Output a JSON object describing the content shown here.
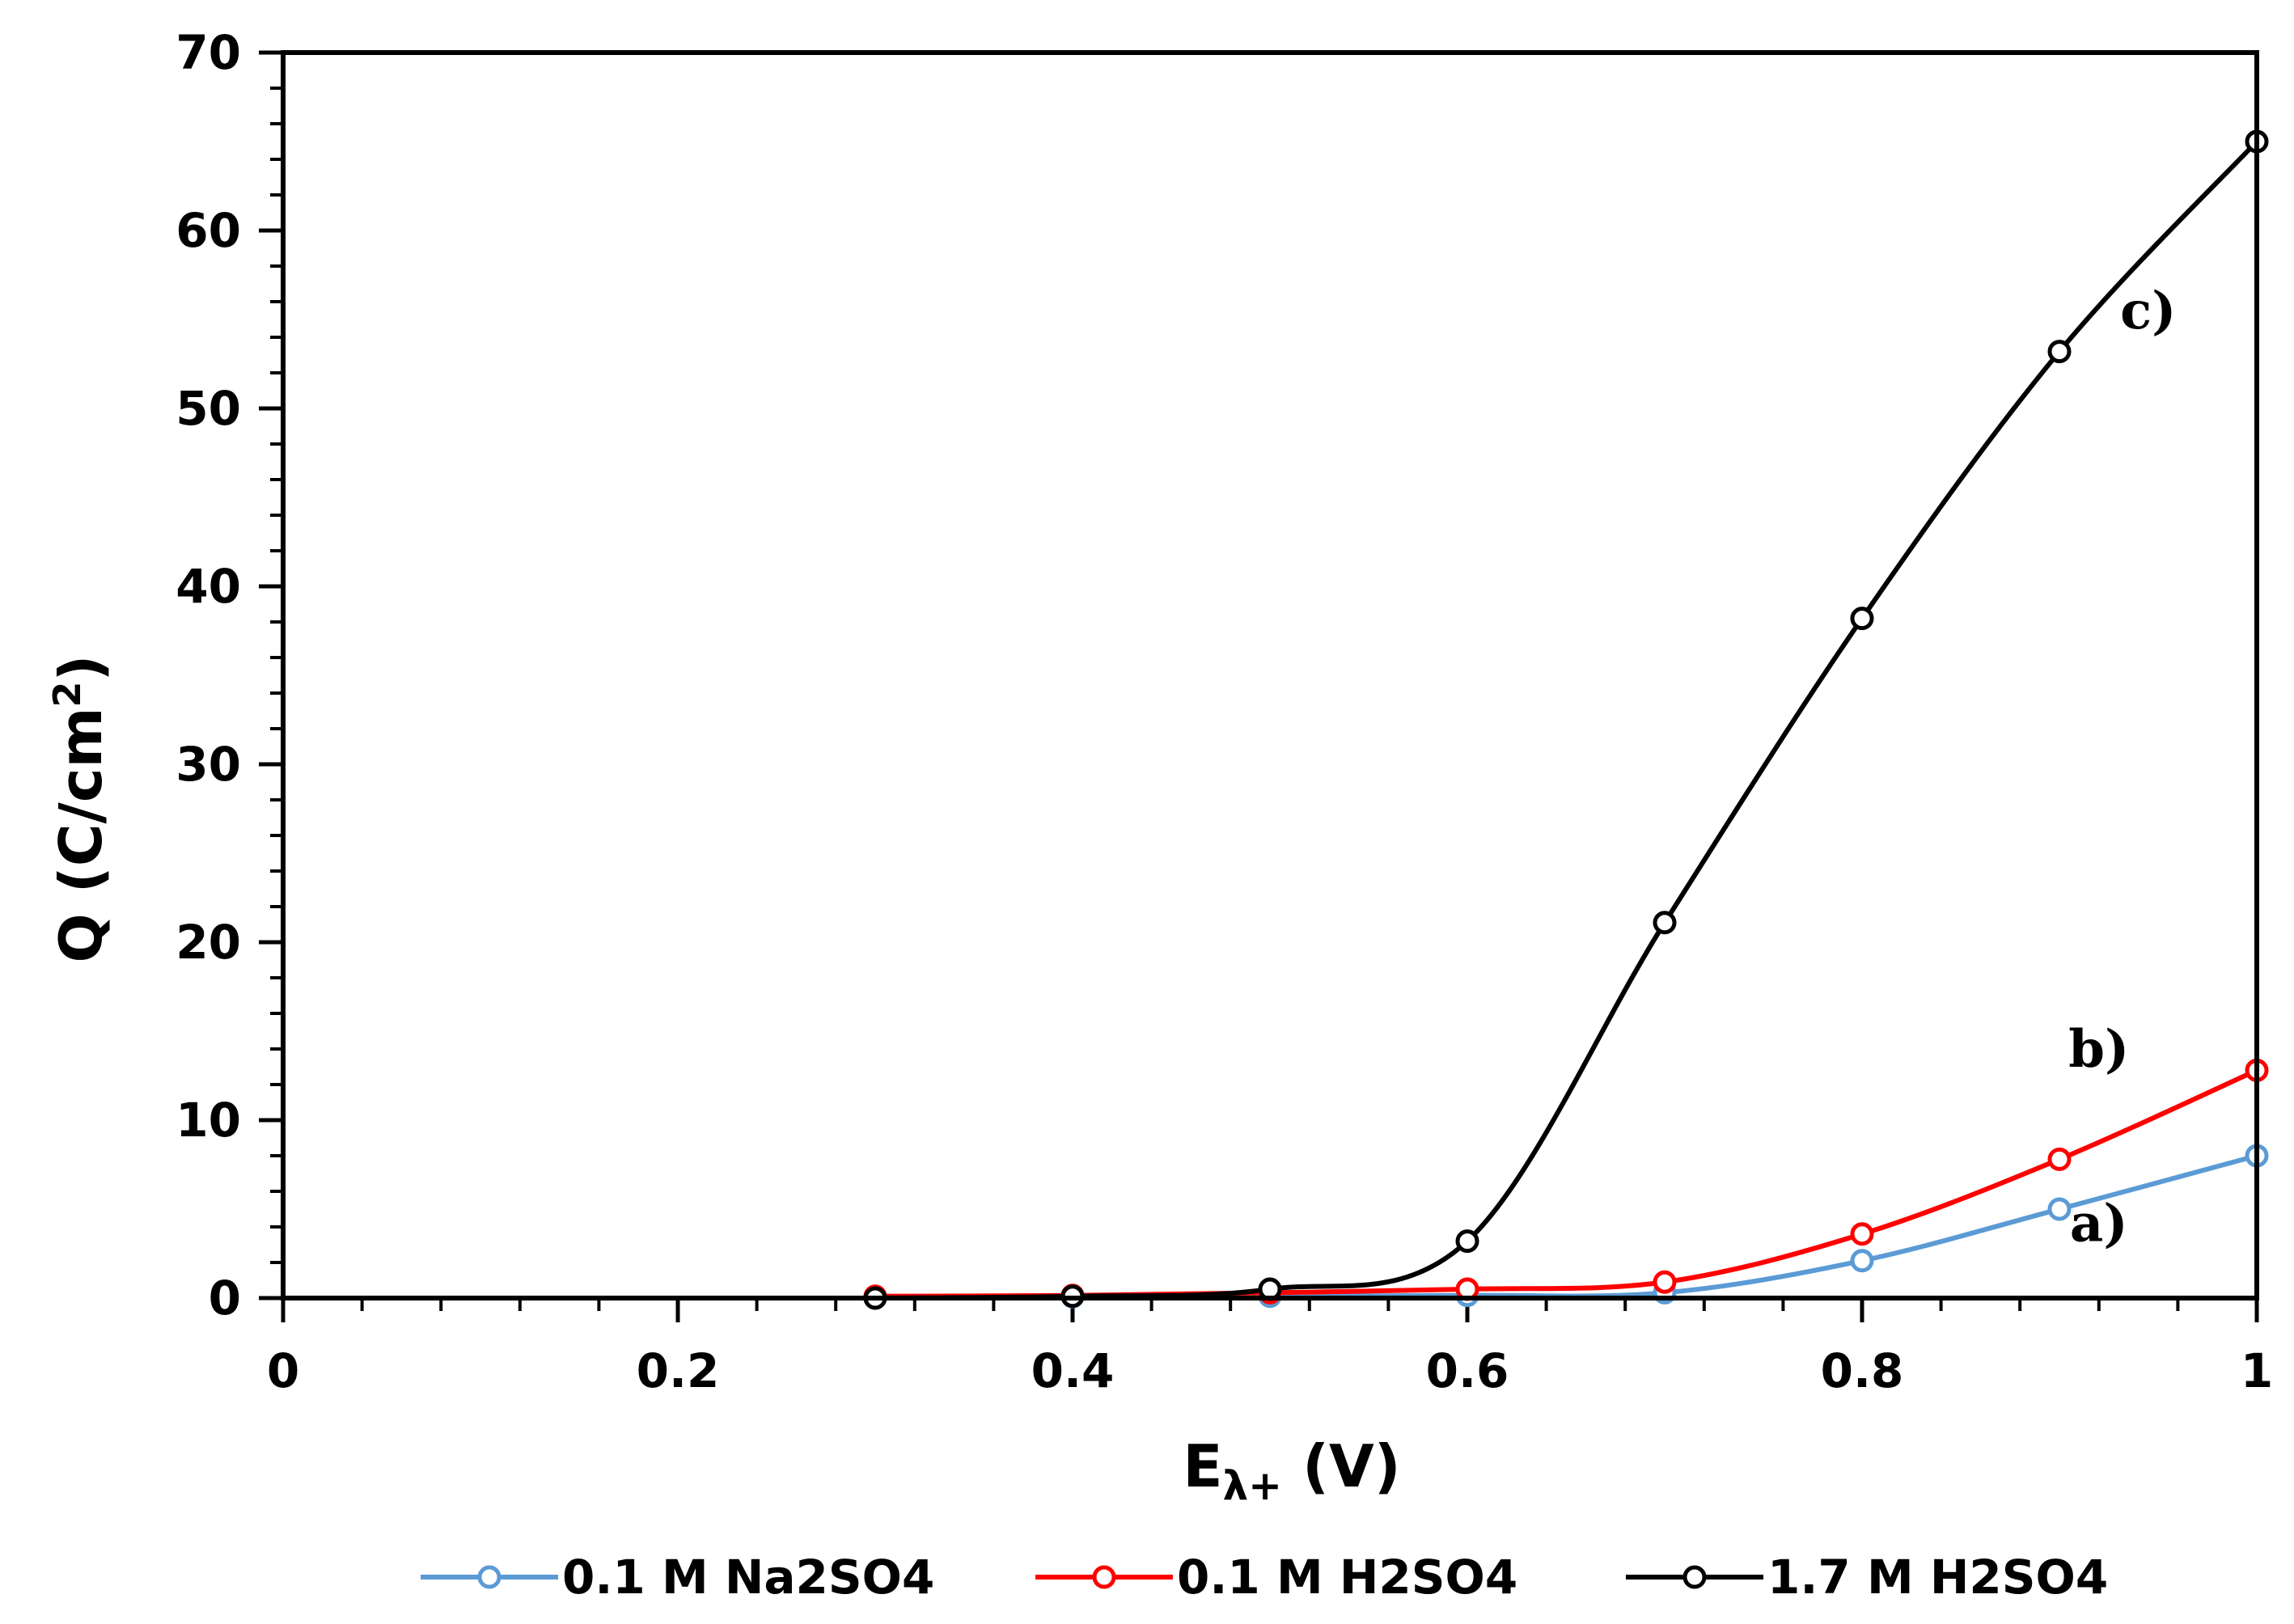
{
  "chart_data": {
    "type": "line",
    "title": "",
    "xlabel_main": "E",
    "xlabel_sub": "λ+",
    "xlabel_suffix": " (V)",
    "ylabel_main": "Q (C/cm",
    "ylabel_sup": "2",
    "ylabel_suffix": ")",
    "xlim": [
      0,
      1
    ],
    "ylim": [
      0,
      70
    ],
    "xticks": [
      0,
      0.2,
      0.4,
      0.6,
      0.8,
      1
    ],
    "xtick_labels": [
      "0",
      "0.2",
      "0.4",
      "0.6",
      "0.8",
      "1"
    ],
    "yticks": [
      0,
      10,
      20,
      30,
      40,
      50,
      60,
      70
    ],
    "ytick_labels": [
      "0",
      "10",
      "20",
      "30",
      "40",
      "50",
      "60",
      "70"
    ],
    "x_minor_step": 0.04,
    "y_minor_step": 2,
    "grid": false,
    "legend_position": "bottom",
    "series": [
      {
        "name": "0.1 M Na2SO4",
        "color": "#5b9bd5",
        "x": [
          0.3,
          0.4,
          0.5,
          0.6,
          0.7,
          0.8,
          0.9,
          1.0
        ],
        "values": [
          0.05,
          0.08,
          0.1,
          0.15,
          0.3,
          2.1,
          5.0,
          8.0
        ]
      },
      {
        "name": "0.1 M H2SO4",
        "color": "#ff0000",
        "x": [
          0.3,
          0.4,
          0.5,
          0.6,
          0.7,
          0.8,
          0.9,
          1.0
        ],
        "values": [
          0.1,
          0.15,
          0.3,
          0.5,
          0.9,
          3.6,
          7.8,
          12.8
        ]
      },
      {
        "name": "1.7 M H2SO4",
        "color": "#000000",
        "x": [
          0.3,
          0.4,
          0.5,
          0.6,
          0.7,
          0.8,
          0.9,
          1.0
        ],
        "values": [
          0.0,
          0.1,
          0.5,
          3.2,
          21.1,
          38.2,
          53.2,
          65.0
        ]
      }
    ],
    "annotations": [
      {
        "text": "a)",
        "x": 0.92,
        "y": 3.2
      },
      {
        "text": "b)",
        "x": 0.92,
        "y": 13.0
      },
      {
        "text": "c)",
        "x": 0.945,
        "y": 54.5
      }
    ]
  }
}
